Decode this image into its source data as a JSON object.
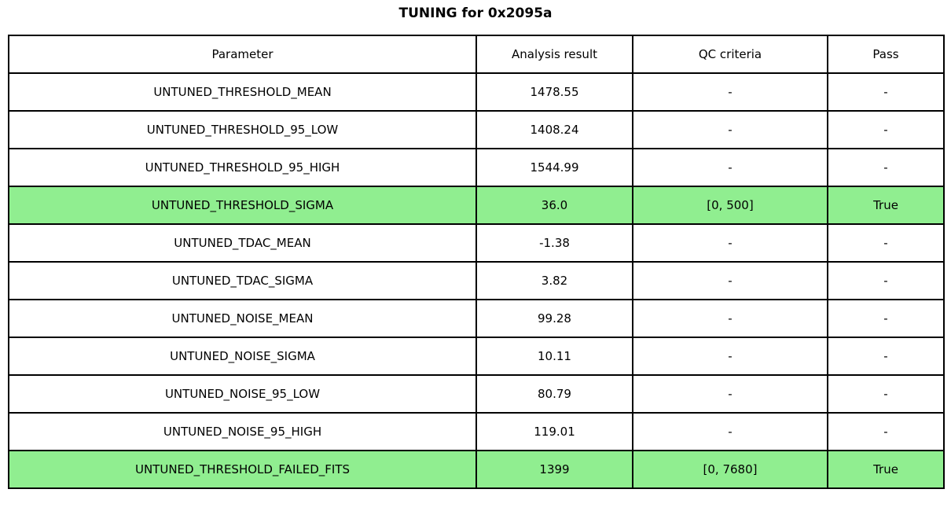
{
  "title": "TUNING for 0x2095a",
  "colors": {
    "highlight_green": "#90EE90",
    "border": "#000000",
    "background": "#FFFFFF",
    "text": "#000000"
  },
  "table": {
    "headers": [
      "Parameter",
      "Analysis result",
      "QC criteria",
      "Pass"
    ],
    "rows": [
      {
        "parameter": "UNTUNED_THRESHOLD_MEAN",
        "result": "1478.55",
        "qc": "-",
        "pass": "-",
        "highlight": false
      },
      {
        "parameter": "UNTUNED_THRESHOLD_95_LOW",
        "result": "1408.24",
        "qc": "-",
        "pass": "-",
        "highlight": false
      },
      {
        "parameter": "UNTUNED_THRESHOLD_95_HIGH",
        "result": "1544.99",
        "qc": "-",
        "pass": "-",
        "highlight": false
      },
      {
        "parameter": "UNTUNED_THRESHOLD_SIGMA",
        "result": "36.0",
        "qc": "[0, 500]",
        "pass": "True",
        "highlight": true
      },
      {
        "parameter": "UNTUNED_TDAC_MEAN",
        "result": "-1.38",
        "qc": "-",
        "pass": "-",
        "highlight": false
      },
      {
        "parameter": "UNTUNED_TDAC_SIGMA",
        "result": "3.82",
        "qc": "-",
        "pass": "-",
        "highlight": false
      },
      {
        "parameter": "UNTUNED_NOISE_MEAN",
        "result": "99.28",
        "qc": "-",
        "pass": "-",
        "highlight": false
      },
      {
        "parameter": "UNTUNED_NOISE_SIGMA",
        "result": "10.11",
        "qc": "-",
        "pass": "-",
        "highlight": false
      },
      {
        "parameter": "UNTUNED_NOISE_95_LOW",
        "result": "80.79",
        "qc": "-",
        "pass": "-",
        "highlight": false
      },
      {
        "parameter": "UNTUNED_NOISE_95_HIGH",
        "result": "119.01",
        "qc": "-",
        "pass": "-",
        "highlight": false
      },
      {
        "parameter": "UNTUNED_THRESHOLD_FAILED_FITS",
        "result": "1399",
        "qc": "[0, 7680]",
        "pass": "True",
        "highlight": true
      }
    ]
  },
  "chart_data": {
    "type": "table",
    "title": "TUNING for 0x2095a",
    "columns": [
      "Parameter",
      "Analysis result",
      "QC criteria",
      "Pass"
    ],
    "rows": [
      [
        "UNTUNED_THRESHOLD_MEAN",
        "1478.55",
        "-",
        "-"
      ],
      [
        "UNTUNED_THRESHOLD_95_LOW",
        "1408.24",
        "-",
        "-"
      ],
      [
        "UNTUNED_THRESHOLD_95_HIGH",
        "1544.99",
        "-",
        "-"
      ],
      [
        "UNTUNED_THRESHOLD_SIGMA",
        "36.0",
        "[0, 500]",
        "True"
      ],
      [
        "UNTUNED_TDAC_MEAN",
        "-1.38",
        "-",
        "-"
      ],
      [
        "UNTUNED_TDAC_SIGMA",
        "3.82",
        "-",
        "-"
      ],
      [
        "UNTUNED_NOISE_MEAN",
        "99.28",
        "-",
        "-"
      ],
      [
        "UNTUNED_NOISE_SIGMA",
        "10.11",
        "-",
        "-"
      ],
      [
        "UNTUNED_NOISE_95_LOW",
        "80.79",
        "-",
        "-"
      ],
      [
        "UNTUNED_NOISE_95_HIGH",
        "119.01",
        "-",
        "-"
      ],
      [
        "UNTUNED_THRESHOLD_FAILED_FITS",
        "1399",
        "[0, 7680]",
        "True"
      ]
    ],
    "highlighted_rows": [
      3,
      10
    ],
    "layout_hints": {
      "title_position": "top-center",
      "highlight_color": "#90EE90",
      "grid": "all-cell-borders"
    }
  }
}
